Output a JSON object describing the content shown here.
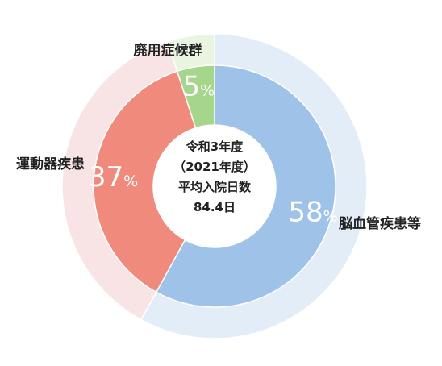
{
  "chart_data": {
    "type": "pie",
    "variant": "donut",
    "categories": [
      "脳血管疾患等",
      "運動器疾患",
      "廃用症候群"
    ],
    "values": [
      58,
      37,
      5
    ],
    "value_labels": [
      "58",
      "37",
      "5"
    ],
    "unit": "%",
    "colors": [
      "#9ec2e8",
      "#ef8a7c",
      "#a6d58c"
    ],
    "outer_ring_colors": [
      "#e2edf8",
      "#f8e4e4",
      "#e9f5e1"
    ],
    "center_text": [
      "令和3年度",
      "（2021年度）",
      "平均入院日数",
      "84.4日"
    ],
    "title": "",
    "legend": "none"
  }
}
